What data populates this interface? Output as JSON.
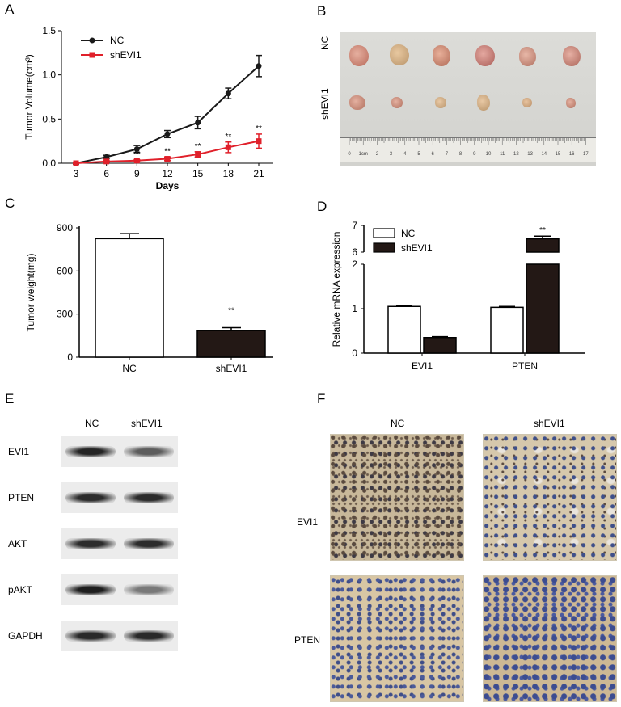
{
  "panels": {
    "A": {
      "letter": "A"
    },
    "B": {
      "letter": "B",
      "rows": [
        "NC",
        "shEVI1"
      ],
      "ruler_ticks": [
        "0",
        "1cm",
        "2",
        "3",
        "4",
        "5",
        "6",
        "7",
        "8",
        "9",
        "10",
        "11",
        "12",
        "13",
        "14",
        "15",
        "16",
        "17"
      ]
    },
    "C": {
      "letter": "C"
    },
    "D": {
      "letter": "D"
    },
    "E": {
      "letter": "E",
      "columns": [
        "NC",
        "shEVI1"
      ],
      "rows": [
        "EVI1",
        "PTEN",
        "AKT",
        "pAKT",
        "GAPDH"
      ],
      "band_intensity": {
        "NC": [
          0.95,
          0.9,
          0.9,
          1.0,
          0.92
        ],
        "shEVI1": [
          0.55,
          0.9,
          0.9,
          0.35,
          0.92
        ]
      }
    },
    "F": {
      "letter": "F",
      "columns": [
        "NC",
        "shEVI1"
      ],
      "rows": [
        "EVI1",
        "PTEN"
      ]
    }
  },
  "chart_data": [
    {
      "type": "line",
      "panel": "A",
      "xlabel": "Days",
      "ylabel": "Tumor Volume(cm³)",
      "x": [
        3,
        6,
        9,
        12,
        15,
        18,
        21
      ],
      "ylim": [
        0,
        1.5
      ],
      "yticks": [
        "0.0",
        "0.5",
        "1.0",
        "1.5"
      ],
      "legend_position": "top-left",
      "series": [
        {
          "name": "NC",
          "color": "#1a1a1a",
          "marker": "circle",
          "values": [
            0.0,
            0.07,
            0.16,
            0.33,
            0.46,
            0.79,
            1.1
          ],
          "errors": [
            0.01,
            0.02,
            0.04,
            0.04,
            0.07,
            0.06,
            0.12
          ]
        },
        {
          "name": "shEVI1",
          "color": "#e0202a",
          "marker": "square",
          "values": [
            0.0,
            0.02,
            0.03,
            0.05,
            0.1,
            0.18,
            0.25
          ],
          "errors": [
            0.005,
            0.01,
            0.01,
            0.02,
            0.03,
            0.06,
            0.08
          ]
        }
      ],
      "annotations": [
        {
          "x": 9,
          "text": "**"
        },
        {
          "x": 12,
          "text": "**"
        },
        {
          "x": 15,
          "text": "**"
        },
        {
          "x": 18,
          "text": "**"
        },
        {
          "x": 21,
          "text": "**"
        }
      ]
    },
    {
      "type": "bar",
      "panel": "C",
      "ylabel": "Tumor weight(mg)",
      "categories": [
        "NC",
        "shEVI1"
      ],
      "values": [
        825,
        185
      ],
      "errors": [
        35,
        20
      ],
      "ylim": [
        0,
        900
      ],
      "yticks": [
        "0",
        "300",
        "600",
        "900"
      ],
      "colors": [
        "#ffffff",
        "#231815"
      ],
      "annotations": [
        {
          "category": "shEVI1",
          "text": "**"
        }
      ]
    },
    {
      "type": "bar",
      "panel": "D",
      "ylabel": "Relative mRNA expression",
      "categories": [
        "EVI1",
        "PTEN"
      ],
      "yticks_lower": [
        "0",
        "1",
        "2"
      ],
      "yticks_upper": [
        "6",
        "7"
      ],
      "axis_break": [
        2,
        6
      ],
      "legend_position": "top-left",
      "series": [
        {
          "name": "NC",
          "color": "#ffffff",
          "values": [
            1.05,
            1.03
          ],
          "errors": [
            0.02,
            0.02
          ]
        },
        {
          "name": "shEVI1",
          "color": "#231815",
          "values": [
            0.35,
            6.5
          ],
          "errors": [
            0.02,
            0.1
          ]
        }
      ],
      "annotations": [
        {
          "category": "PTEN",
          "text": "**"
        }
      ]
    }
  ]
}
